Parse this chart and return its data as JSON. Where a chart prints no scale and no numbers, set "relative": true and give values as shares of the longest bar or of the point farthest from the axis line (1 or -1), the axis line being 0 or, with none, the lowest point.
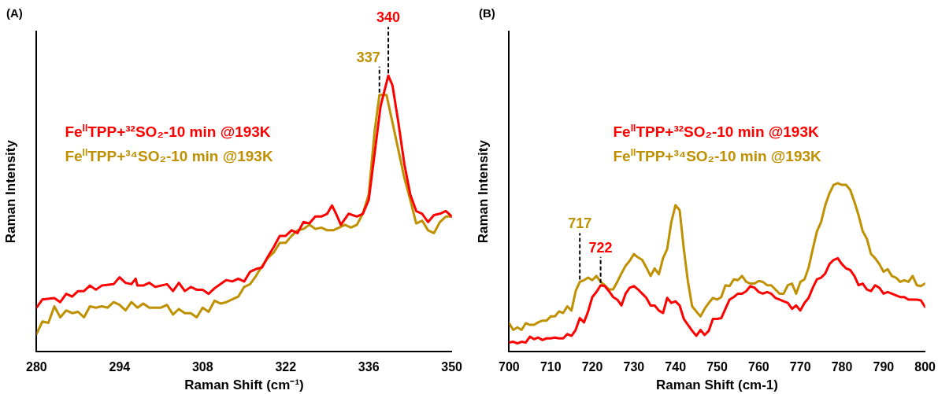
{
  "chart_data": [
    {
      "type": "line",
      "title": "(A)",
      "xlabel": "Raman Shift (cm⁻¹)",
      "ylabel": "Raman Intensity",
      "relative": true,
      "xlim": [
        280,
        350
      ],
      "xticks": [
        280,
        294,
        308,
        322,
        336,
        350
      ],
      "grid": false,
      "legend": "left",
      "marker": "none",
      "line_style": "solid",
      "annotations": [
        {
          "text": "340",
          "x": 339.3,
          "y": 1.0
        },
        {
          "text": "337",
          "x": 337.8,
          "y": 0.93
        }
      ],
      "series": [
        {
          "name": "Fe$^{II}$TPP+³²SO₂-10 min @193K",
          "color": "#ff0000",
          "x": [
            280,
            281,
            283,
            284,
            285,
            286,
            287,
            288,
            289,
            290,
            291,
            293,
            294,
            295,
            296,
            296.7,
            297,
            298,
            299,
            300,
            301,
            302,
            303,
            304,
            305,
            306,
            307,
            308,
            309,
            310,
            311,
            312,
            313,
            314,
            315,
            316,
            317,
            318,
            319,
            320,
            321,
            322,
            323,
            324,
            325,
            326,
            327,
            328,
            329,
            329.8,
            330.5,
            331.3,
            332.6,
            334,
            335,
            336,
            337,
            338,
            339.3,
            340,
            341,
            342,
            343,
            344,
            345,
            346,
            347,
            348,
            349,
            350
          ],
          "values": [
            0.16,
            0.19,
            0.195,
            0.18,
            0.21,
            0.2,
            0.22,
            0.22,
            0.24,
            0.225,
            0.24,
            0.245,
            0.27,
            0.25,
            0.245,
            0.265,
            0.24,
            0.24,
            0.25,
            0.235,
            0.24,
            0.245,
            0.22,
            0.25,
            0.22,
            0.235,
            0.225,
            0.225,
            0.21,
            0.23,
            0.245,
            0.26,
            0.255,
            0.265,
            0.255,
            0.29,
            0.3,
            0.305,
            0.345,
            0.38,
            0.42,
            0.42,
            0.44,
            0.43,
            0.47,
            0.465,
            0.49,
            0.49,
            0.5,
            0.53,
            0.5,
            0.46,
            0.5,
            0.49,
            0.5,
            0.55,
            0.72,
            0.89,
            1.0,
            0.965,
            0.83,
            0.68,
            0.57,
            0.51,
            0.5,
            0.47,
            0.495,
            0.5,
            0.51,
            0.49
          ]
        },
        {
          "name": "Fe$^{II}$TPP+³⁴SO₂-10 min @193K",
          "color": "#bf9000",
          "x": [
            280,
            281,
            282,
            283,
            284,
            285,
            286,
            287,
            288,
            289,
            290,
            291,
            292,
            293,
            294,
            295,
            296,
            297,
            298,
            299,
            300,
            301,
            302,
            303,
            304,
            305,
            306,
            307,
            308,
            309,
            310,
            311,
            312,
            313,
            314,
            315,
            316,
            317,
            318,
            319,
            320,
            321,
            322,
            323,
            324,
            325,
            326,
            327,
            328,
            329,
            330,
            331,
            332,
            333,
            334,
            335,
            336,
            337,
            337.8,
            339,
            340,
            341,
            342,
            343,
            344,
            345,
            346,
            347,
            348,
            349,
            350
          ],
          "values": [
            0.065,
            0.11,
            0.105,
            0.165,
            0.125,
            0.15,
            0.14,
            0.145,
            0.125,
            0.165,
            0.16,
            0.165,
            0.16,
            0.18,
            0.17,
            0.15,
            0.18,
            0.16,
            0.175,
            0.16,
            0.16,
            0.16,
            0.17,
            0.135,
            0.155,
            0.14,
            0.14,
            0.125,
            0.16,
            0.145,
            0.185,
            0.175,
            0.18,
            0.19,
            0.2,
            0.235,
            0.245,
            0.275,
            0.31,
            0.34,
            0.36,
            0.395,
            0.395,
            0.42,
            0.44,
            0.445,
            0.46,
            0.445,
            0.45,
            0.44,
            0.44,
            0.45,
            0.46,
            0.45,
            0.46,
            0.5,
            0.57,
            0.8,
            0.93,
            0.93,
            0.83,
            0.73,
            0.63,
            0.55,
            0.465,
            0.475,
            0.44,
            0.43,
            0.47,
            0.49,
            0.49
          ]
        }
      ]
    },
    {
      "type": "line",
      "title": "(B)",
      "xlabel": "Raman Shift (cm-1)",
      "ylabel": "Raman Intensity",
      "relative": true,
      "xlim": [
        700,
        800
      ],
      "xticks": [
        700,
        710,
        720,
        730,
        740,
        750,
        760,
        770,
        780,
        790,
        800
      ],
      "grid": false,
      "legend": "top",
      "marker": "none",
      "line_style": "solid",
      "annotations": [
        {
          "text": "717",
          "x": 717,
          "y": 0.415
        },
        {
          "text": "722",
          "x": 722,
          "y": 0.395
        }
      ],
      "x": [
        700,
        701,
        702,
        703,
        704,
        705,
        706,
        707,
        708,
        709,
        710,
        711,
        712,
        713,
        714,
        715,
        716,
        717,
        718,
        719,
        720,
        721,
        722,
        723,
        724,
        725,
        726,
        727,
        728,
        729,
        730,
        731,
        732,
        733,
        734,
        735,
        736,
        737,
        738,
        739,
        740,
        741,
        742,
        743,
        744,
        745,
        746,
        747,
        748,
        749,
        750,
        751,
        752,
        753,
        754,
        755,
        756,
        757,
        758,
        759,
        760,
        761,
        762,
        763,
        764,
        765,
        766,
        767,
        768,
        769,
        770,
        771,
        772,
        773,
        774,
        775,
        776,
        777,
        778,
        779,
        780,
        781,
        782,
        783,
        784,
        785,
        786,
        787,
        788,
        789,
        790,
        791,
        792,
        793,
        794,
        795,
        796,
        797,
        798,
        799,
        800
      ],
      "series": [
        {
          "name": "Fe$^{II}$TPP+³²SO₂-10 min @193K",
          "color": "#ff0000",
          "values": [
            0.055,
            0.06,
            0.05,
            0.06,
            0.055,
            0.09,
            0.075,
            0.085,
            0.07,
            0.08,
            0.08,
            0.085,
            0.08,
            0.08,
            0.105,
            0.095,
            0.13,
            0.2,
            0.175,
            0.24,
            0.325,
            0.355,
            0.395,
            0.39,
            0.36,
            0.325,
            0.31,
            0.275,
            0.345,
            0.38,
            0.39,
            0.37,
            0.345,
            0.32,
            0.275,
            0.275,
            0.245,
            0.23,
            0.32,
            0.29,
            0.3,
            0.275,
            0.195,
            0.16,
            0.125,
            0.095,
            0.13,
            0.1,
            0.125,
            0.195,
            0.195,
            0.2,
            0.255,
            0.31,
            0.325,
            0.345,
            0.345,
            0.36,
            0.39,
            0.38,
            0.355,
            0.345,
            0.355,
            0.345,
            0.32,
            0.31,
            0.3,
            0.29,
            0.255,
            0.275,
            0.245,
            0.29,
            0.32,
            0.38,
            0.43,
            0.44,
            0.465,
            0.52,
            0.545,
            0.555,
            0.52,
            0.495,
            0.485,
            0.45,
            0.395,
            0.405,
            0.37,
            0.36,
            0.395,
            0.38,
            0.345,
            0.355,
            0.345,
            0.335,
            0.325,
            0.325,
            0.31,
            0.31,
            0.31,
            0.305,
            0.265
          ]
        },
        {
          "name": "Fe$^{II}$TPP+³⁴SO₂-10 min @193K",
          "color": "#bf9000",
          "values": [
            0.17,
            0.13,
            0.145,
            0.13,
            0.17,
            0.16,
            0.16,
            0.175,
            0.185,
            0.185,
            0.21,
            0.21,
            0.24,
            0.23,
            0.27,
            0.245,
            0.36,
            0.415,
            0.425,
            0.44,
            0.425,
            0.45,
            0.415,
            0.395,
            0.37,
            0.37,
            0.415,
            0.465,
            0.51,
            0.54,
            0.58,
            0.56,
            0.545,
            0.5,
            0.45,
            0.495,
            0.46,
            0.555,
            0.61,
            0.77,
            0.87,
            0.84,
            0.61,
            0.415,
            0.27,
            0.24,
            0.21,
            0.255,
            0.29,
            0.32,
            0.31,
            0.325,
            0.395,
            0.39,
            0.43,
            0.425,
            0.45,
            0.415,
            0.405,
            0.405,
            0.42,
            0.415,
            0.395,
            0.395,
            0.37,
            0.345,
            0.345,
            0.395,
            0.405,
            0.345,
            0.415,
            0.43,
            0.5,
            0.61,
            0.715,
            0.77,
            0.87,
            0.94,
            0.99,
            1.0,
            0.99,
            0.99,
            0.96,
            0.89,
            0.81,
            0.715,
            0.67,
            0.58,
            0.555,
            0.52,
            0.475,
            0.49,
            0.45,
            0.44,
            0.415,
            0.425,
            0.415,
            0.45,
            0.395,
            0.39,
            0.405
          ]
        }
      ]
    }
  ]
}
